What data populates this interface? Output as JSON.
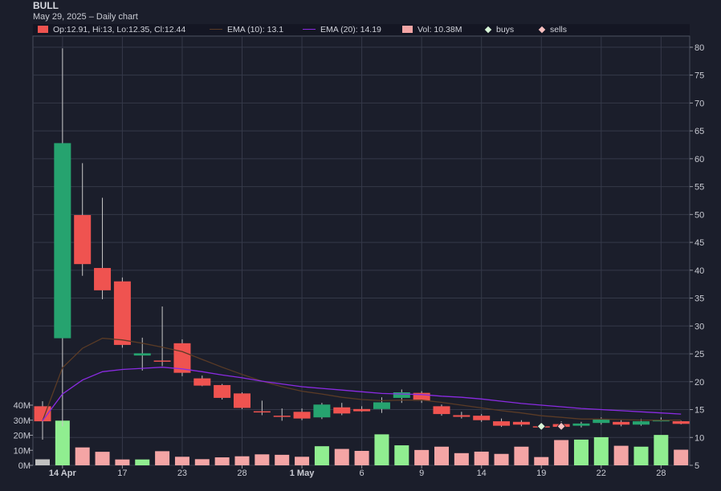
{
  "header": {
    "symbol": "BULL",
    "subtitle": "May 29, 2025 – Daily chart"
  },
  "legend": {
    "ohlc": "Op:12.91, Hi:13, Lo:12.35, Cl:12.44",
    "ema10": "EMA (10): 13.1",
    "ema20": "EMA (20): 14.19",
    "vol": "Vol: 10.38M",
    "buys": "buys",
    "sells": "sells"
  },
  "colors": {
    "up": "#26a36f",
    "down": "#ef5350",
    "ema10": "#5a3b26",
    "ema20": "#8a2be2",
    "vol_up": "#90ee90",
    "vol_down": "#f4a5a5",
    "vol_neutral": "#c0c0c0",
    "buy_marker": "#d8f5d8",
    "sell_marker": "#f8c0c0"
  },
  "chart_data": {
    "type": "candlestick",
    "title": "BULL",
    "y_price_range": [
      5,
      82
    ],
    "y_price_ticks": [
      5,
      10,
      15,
      20,
      25,
      30,
      35,
      40,
      45,
      50,
      55,
      60,
      65,
      70,
      75,
      80
    ],
    "y_volume_range": [
      0,
      45
    ],
    "y_volume_ticks": [
      0,
      10,
      20,
      30,
      40
    ],
    "y_volume_tick_labels": [
      "0M",
      "10M",
      "20M",
      "30M",
      "40M"
    ],
    "x_ticks": [
      {
        "index": 1,
        "label": "14 Apr",
        "bold": true
      },
      {
        "index": 4,
        "label": "17"
      },
      {
        "index": 7,
        "label": "23"
      },
      {
        "index": 10,
        "label": "28"
      },
      {
        "index": 13,
        "label": "1 May",
        "bold": true
      },
      {
        "index": 16,
        "label": "6"
      },
      {
        "index": 19,
        "label": "9"
      },
      {
        "index": 22,
        "label": "14"
      },
      {
        "index": 25,
        "label": "19"
      },
      {
        "index": 28,
        "label": "22"
      },
      {
        "index": 31,
        "label": "28"
      }
    ],
    "candles": [
      {
        "o": 15.6,
        "h": 16.5,
        "l": 9.6,
        "c": 12.9,
        "v": 4.0
      },
      {
        "o": 27.8,
        "h": 79.8,
        "l": 12.0,
        "c": 62.8,
        "v": 29.7
      },
      {
        "o": 49.9,
        "h": 59.2,
        "l": 39.0,
        "c": 41.1,
        "v": 11.9
      },
      {
        "o": 40.4,
        "h": 53.0,
        "l": 34.8,
        "c": 36.4,
        "v": 9.0
      },
      {
        "o": 38.0,
        "h": 38.7,
        "l": 26.1,
        "c": 26.6,
        "v": 3.9
      },
      {
        "o": 24.7,
        "h": 27.9,
        "l": 22.0,
        "c": 25.1,
        "v": 3.9
      },
      {
        "o": 23.8,
        "h": 33.5,
        "l": 22.8,
        "c": 23.6,
        "v": 9.4
      },
      {
        "o": 26.9,
        "h": 27.6,
        "l": 21.0,
        "c": 21.6,
        "v": 5.7
      },
      {
        "o": 20.6,
        "h": 21.1,
        "l": 19.2,
        "c": 19.3,
        "v": 4.1
      },
      {
        "o": 19.4,
        "h": 19.6,
        "l": 16.8,
        "c": 17.1,
        "v": 5.3
      },
      {
        "o": 17.9,
        "h": 18.1,
        "l": 15.1,
        "c": 15.3,
        "v": 6.0
      },
      {
        "o": 14.7,
        "h": 16.6,
        "l": 14.0,
        "c": 14.5,
        "v": 7.3
      },
      {
        "o": 13.9,
        "h": 15.2,
        "l": 13.0,
        "c": 13.8,
        "v": 7.0
      },
      {
        "o": 14.6,
        "h": 15.2,
        "l": 13.1,
        "c": 13.4,
        "v": 5.7
      },
      {
        "o": 13.6,
        "h": 16.2,
        "l": 13.3,
        "c": 15.9,
        "v": 12.7
      },
      {
        "o": 15.4,
        "h": 16.2,
        "l": 14.0,
        "c": 14.3,
        "v": 10.9
      },
      {
        "o": 15.1,
        "h": 15.6,
        "l": 14.6,
        "c": 14.7,
        "v": 9.6
      },
      {
        "o": 15.1,
        "h": 17.2,
        "l": 14.4,
        "c": 16.3,
        "v": 20.6
      },
      {
        "o": 17.1,
        "h": 18.6,
        "l": 16.2,
        "c": 18.1,
        "v": 13.3
      },
      {
        "o": 18.0,
        "h": 18.3,
        "l": 16.2,
        "c": 16.6,
        "v": 10.2
      },
      {
        "o": 15.6,
        "h": 15.9,
        "l": 13.9,
        "c": 14.2,
        "v": 12.4
      },
      {
        "o": 14.0,
        "h": 14.6,
        "l": 13.4,
        "c": 13.7,
        "v": 8.1
      },
      {
        "o": 13.9,
        "h": 14.2,
        "l": 12.8,
        "c": 13.1,
        "v": 9.1
      },
      {
        "o": 12.9,
        "h": 13.4,
        "l": 11.9,
        "c": 12.1,
        "v": 7.6
      },
      {
        "o": 12.8,
        "h": 13.1,
        "l": 12.0,
        "c": 12.3,
        "v": 12.4
      },
      {
        "o": 12.0,
        "h": 12.2,
        "l": 11.5,
        "c": 11.8,
        "v": 5.5
      },
      {
        "o": 12.4,
        "h": 12.9,
        "l": 11.6,
        "c": 11.9,
        "v": 16.8
      },
      {
        "o": 12.1,
        "h": 12.8,
        "l": 11.8,
        "c": 12.5,
        "v": 17.1
      },
      {
        "o": 12.6,
        "h": 13.6,
        "l": 12.3,
        "c": 13.3,
        "v": 18.7
      },
      {
        "o": 12.8,
        "h": 13.1,
        "l": 12.0,
        "c": 12.3,
        "v": 13.0
      },
      {
        "o": 12.3,
        "h": 13.3,
        "l": 12.1,
        "c": 12.9,
        "v": 12.4
      },
      {
        "o": 13.1,
        "h": 13.6,
        "l": 12.9,
        "c": 13.1,
        "v": 20.2
      },
      {
        "o": 12.91,
        "h": 13.0,
        "l": 12.35,
        "c": 12.44,
        "v": 10.38
      }
    ],
    "ema10": [
      13.0,
      22.5,
      26.0,
      27.8,
      27.5,
      26.9,
      26.2,
      25.4,
      24.0,
      22.6,
      21.3,
      20.1,
      19.1,
      18.3,
      17.8,
      17.2,
      16.8,
      16.6,
      16.7,
      16.7,
      16.3,
      15.8,
      15.3,
      14.8,
      14.4,
      13.9,
      13.6,
      13.3,
      13.3,
      13.2,
      13.1,
      13.1,
      13.1
    ],
    "ema20": [
      13.0,
      17.8,
      20.3,
      21.8,
      22.2,
      22.4,
      22.6,
      22.3,
      21.8,
      21.2,
      20.7,
      20.1,
      19.6,
      19.1,
      18.8,
      18.5,
      18.2,
      17.9,
      17.8,
      17.7,
      17.4,
      17.2,
      16.9,
      16.5,
      16.1,
      15.8,
      15.5,
      15.2,
      15.0,
      14.8,
      14.6,
      14.4,
      14.19
    ],
    "buys": [
      {
        "index": 25,
        "price": 12.0
      }
    ],
    "sells": [
      {
        "index": 26,
        "price": 12.0
      }
    ]
  }
}
